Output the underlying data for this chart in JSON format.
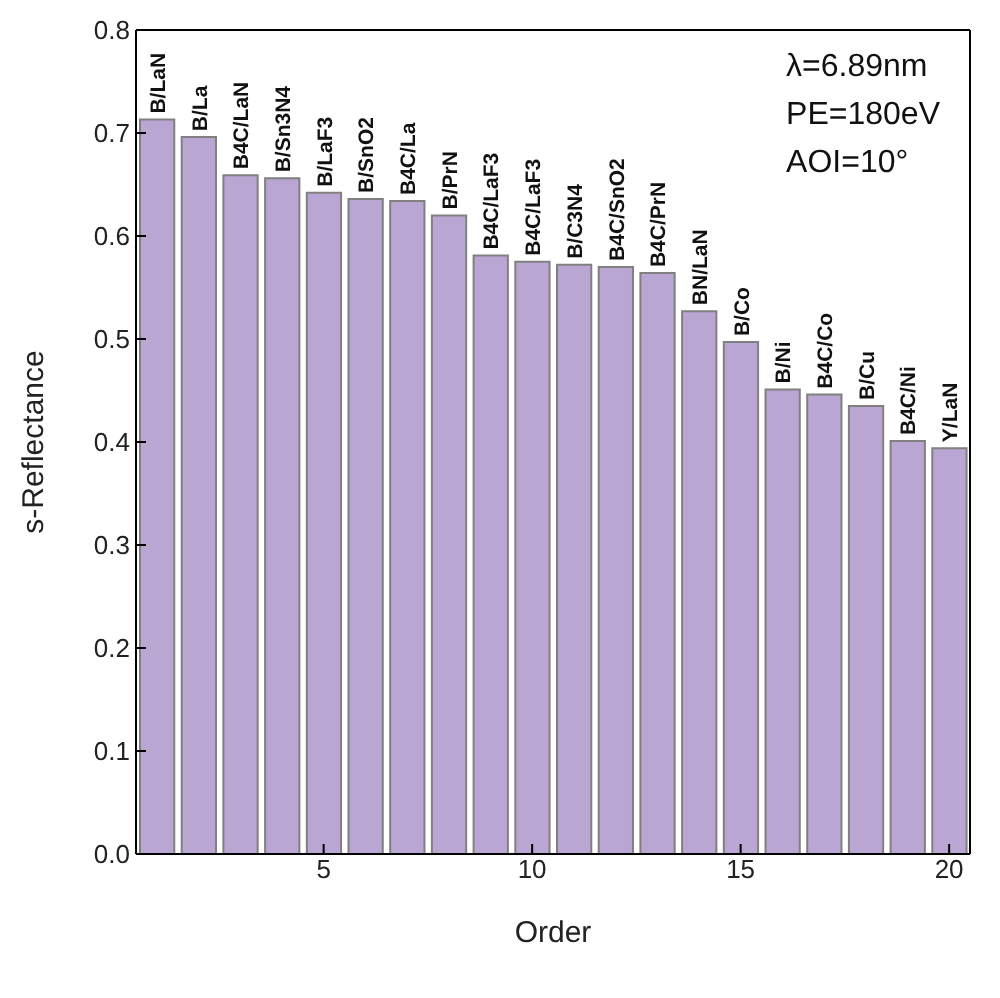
{
  "chart_data": {
    "type": "bar",
    "xlabel": "Order",
    "ylabel": "s-Reflectance",
    "color": "#b9a6d3",
    "x": [
      1,
      2,
      3,
      4,
      5,
      6,
      7,
      8,
      9,
      10,
      11,
      12,
      13,
      14,
      15,
      16,
      17,
      18,
      19,
      20
    ],
    "values": [
      0.713,
      0.696,
      0.659,
      0.656,
      0.642,
      0.636,
      0.634,
      0.62,
      0.581,
      0.575,
      0.572,
      0.57,
      0.564,
      0.527,
      0.497,
      0.451,
      0.446,
      0.435,
      0.401,
      0.394
    ],
    "xlim": [
      0.5,
      20.5
    ],
    "xticks": [
      5,
      10,
      15,
      20
    ],
    "ylim": [
      0,
      0.8
    ],
    "yticks": [
      {
        "value": 0,
        "label": "0.0"
      },
      {
        "value": 0.1,
        "label": "0.1"
      },
      {
        "value": 0.2,
        "label": "0.2"
      },
      {
        "value": 0.3,
        "label": "0.3"
      },
      {
        "value": 0.4,
        "label": "0.4"
      },
      {
        "value": 0.5,
        "label": "0.5"
      },
      {
        "value": 0.6,
        "label": "0.6"
      },
      {
        "value": 0.7,
        "label": "0.7"
      },
      {
        "value": 0.8,
        "label": "0.8"
      }
    ],
    "annotations": [
      "λ=6.89nm",
      "PE=180eV",
      "AOI=10°",
      {
        "text": "B/LaN",
        "x": 1,
        "y": 0.713
      },
      {
        "text": "B/La",
        "x": 2,
        "y": 0.696
      },
      {
        "text": "B4C/LaN",
        "x": 3,
        "y": 0.659
      },
      {
        "text": "B/Sn3N4",
        "x": 4,
        "y": 0.656
      },
      {
        "text": "B/LaF3",
        "x": 5,
        "y": 0.642
      },
      {
        "text": "B/SnO2",
        "x": 6,
        "y": 0.636
      },
      {
        "text": "B4C/La",
        "x": 7,
        "y": 0.634
      },
      {
        "text": "B/PrN",
        "x": 8,
        "y": 0.62
      },
      {
        "text": "B4C/LaF3",
        "x": 9,
        "y": 0.581
      },
      {
        "text": "B4C/LaF3",
        "x": 10,
        "y": 0.575
      },
      {
        "text": "B/C3N4",
        "x": 11,
        "y": 0.572
      },
      {
        "text": "B4C/SnO2",
        "x": 12,
        "y": 0.57
      },
      {
        "text": "B4C/PrN",
        "x": 13,
        "y": 0.564
      },
      {
        "text": "BN/LaN",
        "x": 14,
        "y": 0.527
      },
      {
        "text": "B/Co",
        "x": 15,
        "y": 0.497
      },
      {
        "text": "B/Ni",
        "x": 16,
        "y": 0.451
      },
      {
        "text": "B4C/Co",
        "x": 17,
        "y": 0.446
      },
      {
        "text": "B/Cu",
        "x": 18,
        "y": 0.435
      },
      {
        "text": "B4C/Ni",
        "x": 19,
        "y": 0.401
      },
      {
        "text": "Y/LaN",
        "x": 20,
        "y": 0.394
      }
    ]
  }
}
